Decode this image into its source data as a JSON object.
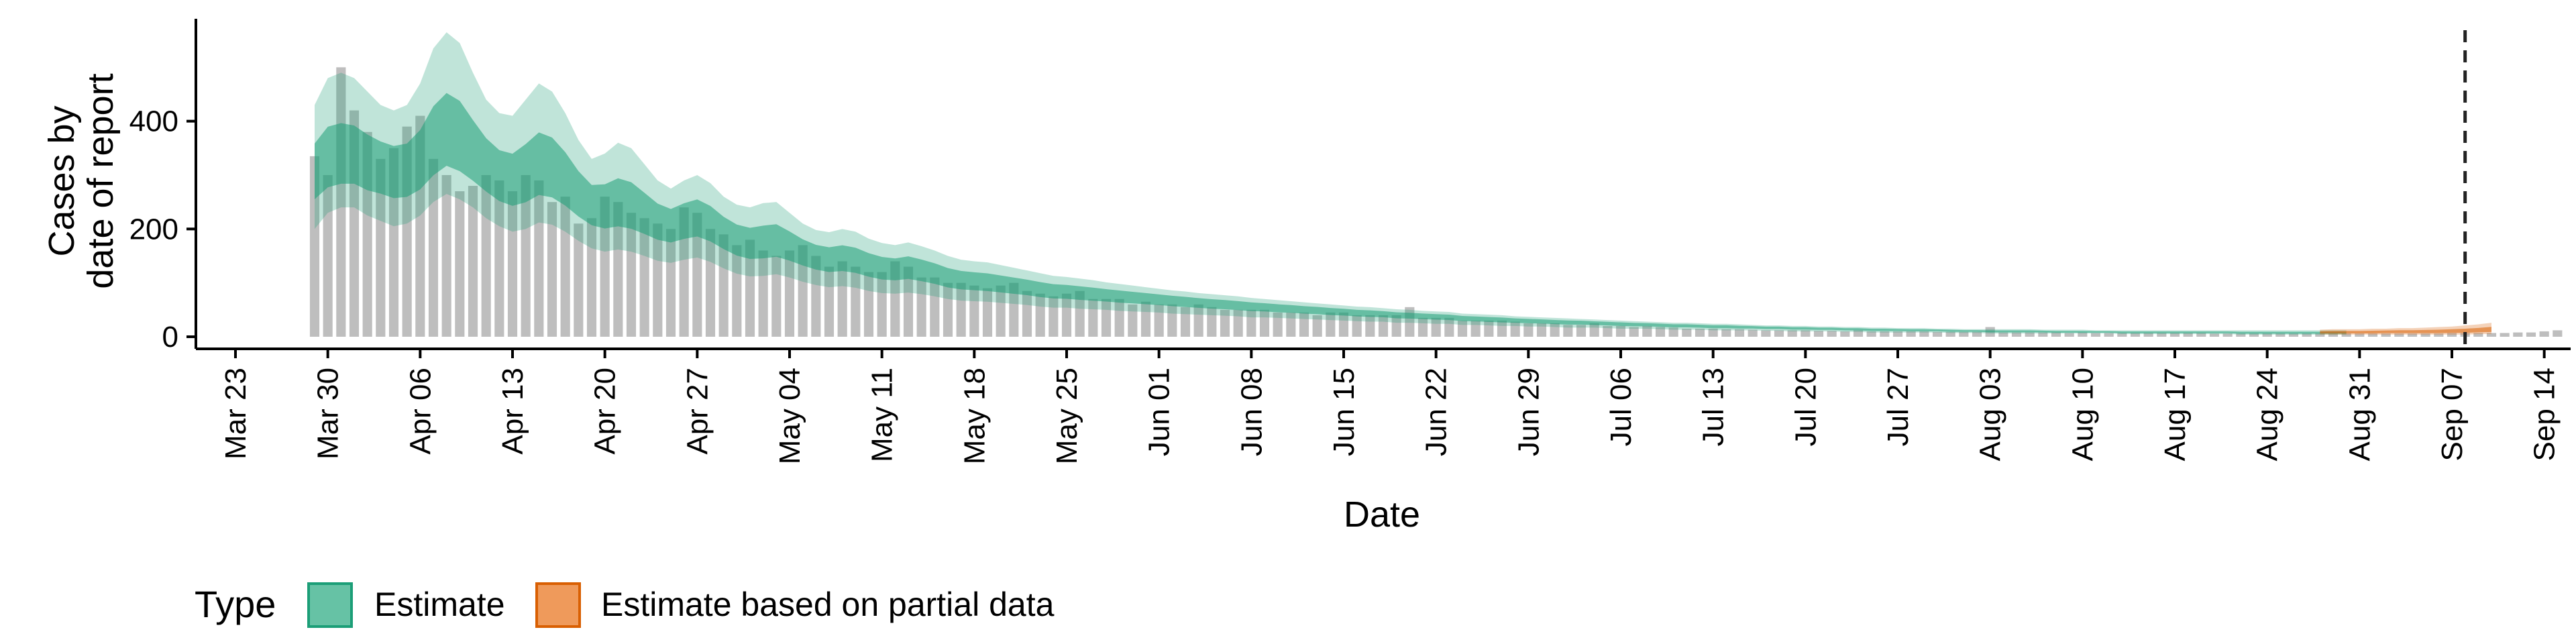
{
  "chart_data": {
    "type": "bar",
    "xlabel": "Date",
    "ylabel_lines": [
      "Cases by",
      "date of report"
    ],
    "ylim": [
      0,
      590
    ],
    "y_ticks": [
      0,
      200,
      400
    ],
    "x_start": "Mar 20",
    "x_end": "Sep 16",
    "x_ticks": [
      "Mar 23",
      "Mar 30",
      "Apr 06",
      "Apr 13",
      "Apr 20",
      "Apr 27",
      "May 04",
      "May 11",
      "May 18",
      "May 25",
      "Jun 01",
      "Jun 08",
      "Jun 15",
      "Jun 22",
      "Jun 29",
      "Jul 06",
      "Jul 13",
      "Jul 20",
      "Jul 27",
      "Aug 03",
      "Aug 10",
      "Aug 17",
      "Aug 24",
      "Aug 31",
      "Sep 07",
      "Sep 14"
    ],
    "reference_line_date": "Sep 08",
    "colors": {
      "bars": "#bebebe",
      "estimate": "#1b9e77",
      "partial": "#d95f02"
    },
    "legend": {
      "title": "Type",
      "items": [
        {
          "label": "Estimate",
          "color": "#66c2a5",
          "border": "#1b9e77"
        },
        {
          "label": "Estimate based on partial data",
          "color": "#ef9a5b",
          "border": "#d95f02"
        }
      ]
    },
    "reported_cases": {
      "start_date": "Mar 29",
      "values": [
        335,
        300,
        500,
        420,
        380,
        330,
        350,
        390,
        410,
        330,
        300,
        270,
        280,
        300,
        290,
        270,
        300,
        290,
        250,
        260,
        210,
        220,
        260,
        250,
        230,
        220,
        210,
        200,
        240,
        230,
        200,
        190,
        170,
        180,
        160,
        150,
        160,
        170,
        150,
        130,
        140,
        130,
        120,
        120,
        140,
        130,
        110,
        110,
        100,
        100,
        95,
        90,
        95,
        100,
        85,
        80,
        75,
        80,
        85,
        70,
        70,
        70,
        60,
        65,
        60,
        60,
        55,
        60,
        55,
        50,
        50,
        50,
        50,
        45,
        45,
        45,
        40,
        45,
        45,
        40,
        40,
        40,
        40,
        55,
        35,
        35,
        35,
        30,
        30,
        30,
        30,
        28,
        25,
        25,
        25,
        22,
        22,
        25,
        20,
        20,
        18,
        20,
        18,
        17,
        15,
        15,
        15,
        14,
        14,
        13,
        12,
        12,
        12,
        12,
        11,
        11,
        10,
        12,
        10,
        10,
        10,
        10,
        10,
        9,
        9,
        9,
        9,
        18,
        8,
        8,
        8,
        8,
        8,
        7,
        8,
        7,
        7,
        7,
        7,
        7,
        7,
        7,
        7,
        7,
        6,
        6,
        6,
        6,
        6,
        6,
        6,
        6,
        6,
        6,
        6,
        6,
        6,
        6,
        6,
        6,
        6,
        6,
        7,
        7,
        7,
        7,
        7,
        8,
        8,
        10,
        12
      ]
    },
    "estimate": {
      "start_date": "Mar 29",
      "median": [
        300,
        316,
        320,
        320,
        310,
        307,
        300,
        300,
        313,
        340,
        360,
        350,
        330,
        310,
        290,
        282,
        290,
        305,
        300,
        283,
        260,
        242,
        236,
        240,
        235,
        224,
        212,
        206,
        213,
        218,
        208,
        192,
        178,
        171,
        172,
        175,
        167,
        157,
        148,
        143,
        145,
        141,
        133,
        127,
        125,
        128,
        123,
        117,
        109,
        105,
        103,
        101,
        98,
        95,
        92,
        88,
        85,
        84,
        82,
        80,
        78,
        76,
        74,
        72,
        70,
        68,
        66,
        64,
        62,
        61,
        59,
        57,
        56,
        54,
        53,
        51,
        50,
        48,
        47,
        45,
        44,
        43,
        41,
        40,
        39,
        38,
        37,
        35,
        34,
        33,
        32,
        31,
        30,
        29,
        28,
        27,
        27,
        26,
        25,
        24,
        23,
        23,
        22,
        21,
        21,
        20,
        19,
        19,
        18,
        18,
        17,
        17,
        16,
        16,
        15,
        15,
        14,
        14,
        13,
        13,
        13,
        12,
        12,
        12,
        11,
        11,
        11,
        10,
        10,
        10,
        10,
        10,
        9,
        9,
        9,
        9,
        9,
        8,
        8,
        8,
        8,
        8,
        8,
        8,
        8,
        8,
        7,
        7,
        7,
        7,
        7,
        7,
        7,
        7,
        7
      ],
      "lower90": [
        200,
        230,
        240,
        240,
        225,
        215,
        205,
        210,
        225,
        250,
        265,
        255,
        240,
        220,
        205,
        195,
        200,
        212,
        208,
        195,
        178,
        164,
        158,
        162,
        158,
        150,
        141,
        137,
        143,
        147,
        139,
        127,
        117,
        112,
        113,
        116,
        110,
        102,
        96,
        92,
        94,
        91,
        85,
        81,
        80,
        82,
        79,
        75,
        70,
        67,
        66,
        65,
        63,
        61,
        59,
        56,
        54,
        54,
        52,
        51,
        50,
        48,
        47,
        46,
        45,
        43,
        42,
        41,
        40,
        39,
        38,
        36,
        36,
        35,
        34,
        33,
        32,
        31,
        30,
        29,
        28,
        28,
        26,
        26,
        25,
        24,
        24,
        22,
        22,
        21,
        20,
        20,
        19,
        19,
        18,
        17,
        17,
        17,
        16,
        15,
        15,
        15,
        14,
        13,
        13,
        13,
        12,
        12,
        12,
        12,
        11,
        11,
        10,
        10,
        10,
        10,
        9,
        9,
        8,
        8,
        8,
        8,
        8,
        8,
        7,
        7,
        7,
        6,
        6,
        6,
        6,
        6,
        6,
        6,
        6,
        6,
        6,
        5,
        5,
        5,
        5,
        5,
        5,
        5,
        5,
        5,
        4,
        4,
        4,
        4,
        4,
        4,
        4,
        4,
        4
      ],
      "upper90": [
        430,
        480,
        490,
        480,
        455,
        430,
        420,
        430,
        470,
        535,
        565,
        545,
        490,
        440,
        415,
        410,
        440,
        470,
        455,
        415,
        365,
        330,
        340,
        360,
        350,
        320,
        290,
        275,
        290,
        300,
        285,
        260,
        245,
        240,
        248,
        250,
        230,
        210,
        198,
        194,
        200,
        195,
        182,
        174,
        170,
        175,
        168,
        160,
        150,
        143,
        140,
        138,
        133,
        128,
        123,
        118,
        113,
        111,
        108,
        105,
        101,
        98,
        95,
        92,
        89,
        86,
        84,
        81,
        79,
        77,
        75,
        72,
        70,
        68,
        66,
        64,
        62,
        60,
        58,
        56,
        55,
        53,
        51,
        50,
        48,
        47,
        46,
        43,
        42,
        41,
        40,
        38,
        37,
        36,
        35,
        34,
        33,
        32,
        31,
        30,
        29,
        28,
        27,
        26,
        26,
        25,
        24,
        24,
        23,
        22,
        21,
        21,
        20,
        20,
        19,
        19,
        18,
        18,
        17,
        17,
        16,
        16,
        16,
        15,
        15,
        14,
        14,
        14,
        14,
        14,
        14,
        13,
        13,
        13,
        13,
        12,
        12,
        12,
        12,
        12,
        12,
        12,
        12,
        12,
        12,
        12,
        12,
        12,
        12,
        12,
        12,
        12,
        12,
        12,
        12
      ]
    },
    "partial_estimate": {
      "start_date": "Aug 28",
      "median": [
        8,
        8,
        8,
        8,
        8,
        9,
        9,
        9,
        9,
        9,
        10,
        10,
        11,
        12
      ],
      "lower90": [
        4,
        4,
        4,
        4,
        4,
        4,
        4,
        4,
        4,
        4,
        4,
        4,
        5,
        5
      ],
      "upper90": [
        13,
        14,
        14,
        14,
        15,
        15,
        16,
        16,
        17,
        18,
        19,
        21,
        23,
        26
      ]
    }
  }
}
